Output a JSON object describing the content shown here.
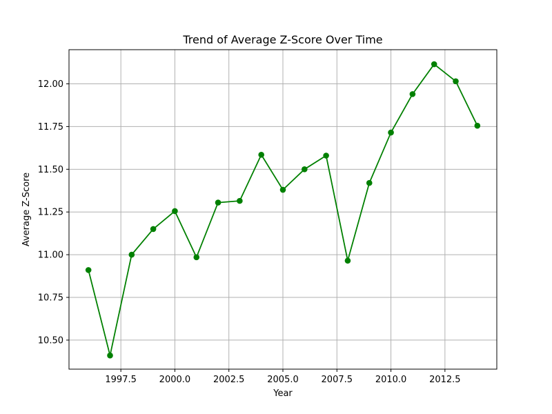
{
  "chart_data": {
    "type": "line",
    "title": "Trend of Average Z-Score Over Time",
    "xlabel": "Year",
    "ylabel": "Average Z-Score",
    "xlim": [
      1995.1,
      2014.9
    ],
    "ylim": [
      10.33,
      12.2
    ],
    "xticks": [
      1997.5,
      2000.0,
      2002.5,
      2005.0,
      2007.5,
      2010.0,
      2012.5
    ],
    "xtick_labels": [
      "1997.5",
      "2000.0",
      "2002.5",
      "2005.0",
      "2007.5",
      "2010.0",
      "2012.5"
    ],
    "yticks": [
      10.5,
      10.75,
      11.0,
      11.25,
      11.5,
      11.75,
      12.0
    ],
    "ytick_labels": [
      "10.50",
      "10.75",
      "11.00",
      "11.25",
      "11.50",
      "11.75",
      "12.00"
    ],
    "grid": true,
    "series": [
      {
        "color": "#008000",
        "marker": "circle",
        "x": [
          1996,
          1997,
          1998,
          1999,
          2000,
          2001,
          2002,
          2003,
          2004,
          2005,
          2006,
          2007,
          2008,
          2009,
          2010,
          2011,
          2012,
          2013,
          2014
        ],
        "y": [
          10.91,
          10.41,
          11.0,
          11.15,
          11.255,
          10.985,
          11.305,
          11.315,
          11.585,
          11.38,
          11.5,
          11.58,
          10.965,
          11.42,
          11.715,
          11.94,
          12.115,
          12.015,
          11.755
        ]
      }
    ]
  }
}
